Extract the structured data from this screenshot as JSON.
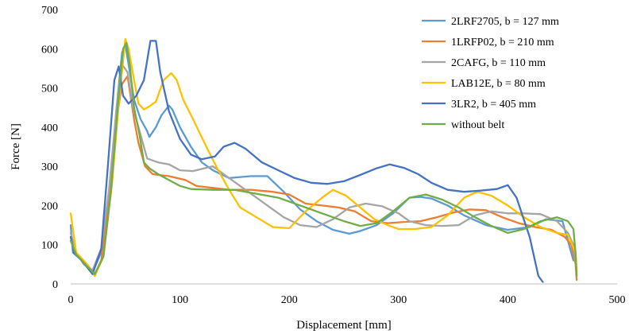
{
  "chart_data": {
    "type": "line",
    "title": "",
    "xlabel": "Displacement [mm]",
    "ylabel": "Force [N]",
    "xlim": [
      0,
      500
    ],
    "ylim": [
      0,
      700
    ],
    "xticks": [
      "0",
      "100",
      "200",
      "300",
      "400",
      "500"
    ],
    "yticks": [
      "0",
      "100",
      "200",
      "300",
      "400",
      "500",
      "600",
      "700"
    ],
    "grid": false,
    "legend_position": "top-right",
    "series": [
      {
        "name": "2LRF2705, b = 127 mm",
        "color": "#5B9BD5",
        "points": [
          [
            0,
            150
          ],
          [
            2,
            80
          ],
          [
            10,
            60
          ],
          [
            20,
            30
          ],
          [
            28,
            80
          ],
          [
            35,
            220
          ],
          [
            42,
            450
          ],
          [
            47,
            590
          ],
          [
            50,
            610
          ],
          [
            53,
            560
          ],
          [
            58,
            470
          ],
          [
            64,
            420
          ],
          [
            70,
            390
          ],
          [
            72,
            375
          ],
          [
            78,
            400
          ],
          [
            83,
            430
          ],
          [
            90,
            455
          ],
          [
            93,
            445
          ],
          [
            100,
            400
          ],
          [
            110,
            350
          ],
          [
            120,
            310
          ],
          [
            130,
            290
          ],
          [
            145,
            270
          ],
          [
            165,
            275
          ],
          [
            180,
            275
          ],
          [
            195,
            235
          ],
          [
            210,
            190
          ],
          [
            225,
            160
          ],
          [
            240,
            138
          ],
          [
            255,
            128
          ],
          [
            265,
            135
          ],
          [
            280,
            150
          ],
          [
            295,
            180
          ],
          [
            310,
            220
          ],
          [
            320,
            222
          ],
          [
            330,
            218
          ],
          [
            345,
            200
          ],
          [
            360,
            175
          ],
          [
            380,
            150
          ],
          [
            400,
            138
          ],
          [
            420,
            145
          ],
          [
            435,
            165
          ],
          [
            450,
            160
          ],
          [
            458,
            80
          ],
          [
            460,
            60
          ]
        ]
      },
      {
        "name": "1LRFP02, b = 210 mm",
        "color": "#ED7D31",
        "points": [
          [
            0,
            120
          ],
          [
            5,
            80
          ],
          [
            15,
            50
          ],
          [
            22,
            25
          ],
          [
            28,
            60
          ],
          [
            35,
            200
          ],
          [
            42,
            420
          ],
          [
            47,
            510
          ],
          [
            52,
            530
          ],
          [
            58,
            420
          ],
          [
            62,
            360
          ],
          [
            68,
            300
          ],
          [
            75,
            280
          ],
          [
            90,
            275
          ],
          [
            105,
            265
          ],
          [
            115,
            250
          ],
          [
            130,
            245
          ],
          [
            145,
            240
          ],
          [
            165,
            240
          ],
          [
            185,
            235
          ],
          [
            200,
            228
          ],
          [
            215,
            205
          ],
          [
            230,
            200
          ],
          [
            245,
            195
          ],
          [
            260,
            185
          ],
          [
            275,
            160
          ],
          [
            290,
            155
          ],
          [
            305,
            158
          ],
          [
            320,
            160
          ],
          [
            335,
            170
          ],
          [
            350,
            182
          ],
          [
            365,
            190
          ],
          [
            380,
            188
          ],
          [
            395,
            170
          ],
          [
            410,
            155
          ],
          [
            425,
            145
          ],
          [
            440,
            138
          ],
          [
            452,
            120
          ],
          [
            458,
            100
          ],
          [
            462,
            50
          ],
          [
            463,
            10
          ]
        ]
      },
      {
        "name": "2CAFG, b = 110 mm",
        "color": "#A5A5A5",
        "points": [
          [
            0,
            130
          ],
          [
            5,
            80
          ],
          [
            12,
            50
          ],
          [
            20,
            35
          ],
          [
            28,
            90
          ],
          [
            35,
            240
          ],
          [
            42,
            450
          ],
          [
            47,
            560
          ],
          [
            52,
            540
          ],
          [
            57,
            450
          ],
          [
            63,
            390
          ],
          [
            70,
            320
          ],
          [
            80,
            310
          ],
          [
            90,
            305
          ],
          [
            100,
            290
          ],
          [
            112,
            288
          ],
          [
            130,
            300
          ],
          [
            145,
            270
          ],
          [
            160,
            240
          ],
          [
            180,
            200
          ],
          [
            195,
            170
          ],
          [
            210,
            150
          ],
          [
            225,
            145
          ],
          [
            240,
            165
          ],
          [
            255,
            195
          ],
          [
            270,
            205
          ],
          [
            285,
            198
          ],
          [
            300,
            180
          ],
          [
            310,
            160
          ],
          [
            325,
            150
          ],
          [
            340,
            148
          ],
          [
            355,
            150
          ],
          [
            370,
            175
          ],
          [
            385,
            185
          ],
          [
            400,
            180
          ],
          [
            415,
            180
          ],
          [
            430,
            178
          ],
          [
            445,
            160
          ],
          [
            455,
            130
          ],
          [
            460,
            100
          ],
          [
            462,
            60
          ],
          [
            463,
            20
          ]
        ]
      },
      {
        "name": "LAB12E, b = 80 mm",
        "color": "#FFC000",
        "points": [
          [
            0,
            180
          ],
          [
            5,
            80
          ],
          [
            15,
            50
          ],
          [
            22,
            20
          ],
          [
            30,
            70
          ],
          [
            38,
            260
          ],
          [
            44,
            460
          ],
          [
            50,
            625
          ],
          [
            53,
            600
          ],
          [
            58,
            520
          ],
          [
            62,
            460
          ],
          [
            67,
            445
          ],
          [
            73,
            455
          ],
          [
            78,
            465
          ],
          [
            85,
            520
          ],
          [
            92,
            538
          ],
          [
            97,
            520
          ],
          [
            103,
            470
          ],
          [
            112,
            420
          ],
          [
            125,
            345
          ],
          [
            135,
            290
          ],
          [
            145,
            240
          ],
          [
            155,
            195
          ],
          [
            170,
            170
          ],
          [
            185,
            145
          ],
          [
            200,
            142
          ],
          [
            215,
            185
          ],
          [
            230,
            220
          ],
          [
            240,
            240
          ],
          [
            252,
            225
          ],
          [
            265,
            195
          ],
          [
            278,
            165
          ],
          [
            290,
            150
          ],
          [
            300,
            140
          ],
          [
            315,
            140
          ],
          [
            330,
            145
          ],
          [
            345,
            175
          ],
          [
            360,
            220
          ],
          [
            372,
            235
          ],
          [
            385,
            225
          ],
          [
            400,
            200
          ],
          [
            415,
            170
          ],
          [
            430,
            145
          ],
          [
            445,
            130
          ],
          [
            455,
            125
          ],
          [
            462,
            80
          ],
          [
            463,
            30
          ]
        ]
      },
      {
        "name": "3LR2, b = 405 mm",
        "color": "#4472C4",
        "points": [
          [
            0,
            120
          ],
          [
            3,
            80
          ],
          [
            10,
            60
          ],
          [
            20,
            25
          ],
          [
            28,
            90
          ],
          [
            34,
            300
          ],
          [
            40,
            520
          ],
          [
            44,
            555
          ],
          [
            48,
            480
          ],
          [
            53,
            460
          ],
          [
            60,
            480
          ],
          [
            67,
            520
          ],
          [
            73,
            620
          ],
          [
            78,
            620
          ],
          [
            82,
            540
          ],
          [
            90,
            440
          ],
          [
            100,
            370
          ],
          [
            110,
            330
          ],
          [
            120,
            318
          ],
          [
            132,
            325
          ],
          [
            140,
            350
          ],
          [
            150,
            360
          ],
          [
            160,
            345
          ],
          [
            175,
            310
          ],
          [
            190,
            290
          ],
          [
            205,
            270
          ],
          [
            220,
            258
          ],
          [
            235,
            255
          ],
          [
            250,
            262
          ],
          [
            265,
            278
          ],
          [
            280,
            295
          ],
          [
            292,
            305
          ],
          [
            305,
            296
          ],
          [
            318,
            280
          ],
          [
            330,
            258
          ],
          [
            345,
            240
          ],
          [
            360,
            235
          ],
          [
            375,
            238
          ],
          [
            390,
            242
          ],
          [
            400,
            252
          ],
          [
            408,
            220
          ],
          [
            420,
            120
          ],
          [
            428,
            20
          ],
          [
            432,
            5
          ]
        ]
      },
      {
        "name": "without belt",
        "color": "#70AD47",
        "points": [
          [
            0,
            110
          ],
          [
            5,
            75
          ],
          [
            15,
            45
          ],
          [
            22,
            25
          ],
          [
            30,
            70
          ],
          [
            37,
            240
          ],
          [
            43,
            450
          ],
          [
            48,
            600
          ],
          [
            51,
            615
          ],
          [
            54,
            560
          ],
          [
            58,
            450
          ],
          [
            63,
            380
          ],
          [
            67,
            310
          ],
          [
            72,
            295
          ],
          [
            80,
            280
          ],
          [
            90,
            265
          ],
          [
            100,
            250
          ],
          [
            110,
            242
          ],
          [
            130,
            240
          ],
          [
            150,
            240
          ],
          [
            170,
            230
          ],
          [
            190,
            220
          ],
          [
            210,
            200
          ],
          [
            230,
            180
          ],
          [
            250,
            160
          ],
          [
            265,
            148
          ],
          [
            280,
            155
          ],
          [
            295,
            185
          ],
          [
            310,
            220
          ],
          [
            325,
            228
          ],
          [
            340,
            215
          ],
          [
            355,
            195
          ],
          [
            370,
            170
          ],
          [
            385,
            148
          ],
          [
            400,
            130
          ],
          [
            415,
            140
          ],
          [
            430,
            160
          ],
          [
            445,
            170
          ],
          [
            455,
            160
          ],
          [
            460,
            140
          ],
          [
            462,
            80
          ],
          [
            463,
            20
          ]
        ]
      }
    ]
  }
}
